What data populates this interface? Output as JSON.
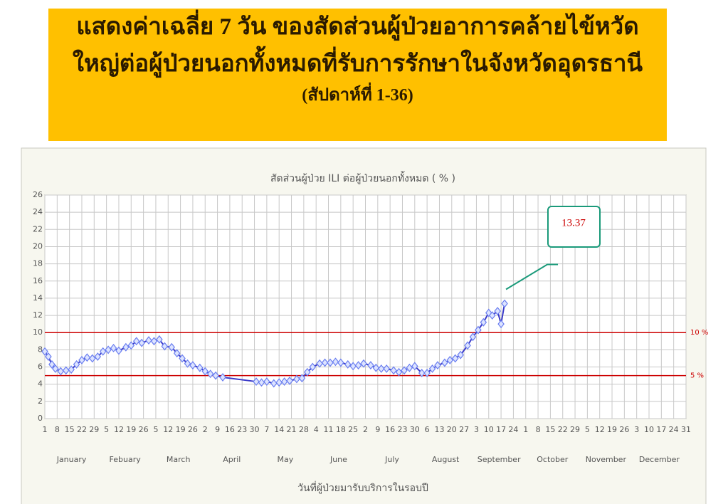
{
  "banner": {
    "lines": [
      "แสดงค่าเฉลี่ย 7 วัน ของสัดส่วนผู้ป่วยอาการคล้ายไข้หวัด",
      "ใหญ่ต่อผู้ป่วยนอกทั้งหมดที่รับการรักษาในจังหวัดอุดรธานี",
      "(สัปดาห์ที่ 1-36)"
    ]
  },
  "chart_data": {
    "type": "line",
    "title": "สัดส่วนผู้ป่วย ILI ต่อผู้ป่วยนอกทั้งหมด ( % )",
    "x_label": "วันที่ผู้ป่วยมารับบริการในรอบปี",
    "xlim": [
      0,
      364
    ],
    "ylim": [
      0,
      26
    ],
    "yticks": [
      0,
      2,
      4,
      6,
      8,
      10,
      12,
      14,
      16,
      18,
      20,
      22,
      24,
      26
    ],
    "grid": true,
    "xticks": [
      {
        "value": 0,
        "label": "1"
      },
      {
        "value": 7,
        "label": "8"
      },
      {
        "value": 14,
        "label": "15"
      },
      {
        "value": 21,
        "label": "22"
      },
      {
        "value": 28,
        "label": "29"
      },
      {
        "value": 35,
        "label": "5"
      },
      {
        "value": 42,
        "label": "12"
      },
      {
        "value": 49,
        "label": "19"
      },
      {
        "value": 56,
        "label": "26"
      },
      {
        "value": 63,
        "label": "5"
      },
      {
        "value": 70,
        "label": "12"
      },
      {
        "value": 77,
        "label": "19"
      },
      {
        "value": 84,
        "label": "26"
      },
      {
        "value": 91,
        "label": "2"
      },
      {
        "value": 98,
        "label": "9"
      },
      {
        "value": 105,
        "label": "16"
      },
      {
        "value": 112,
        "label": "23"
      },
      {
        "value": 119,
        "label": "30"
      },
      {
        "value": 126,
        "label": "7"
      },
      {
        "value": 133,
        "label": "14"
      },
      {
        "value": 140,
        "label": "21"
      },
      {
        "value": 147,
        "label": "28"
      },
      {
        "value": 154,
        "label": "4"
      },
      {
        "value": 161,
        "label": "11"
      },
      {
        "value": 168,
        "label": "18"
      },
      {
        "value": 175,
        "label": "25"
      },
      {
        "value": 182,
        "label": "2"
      },
      {
        "value": 189,
        "label": "9"
      },
      {
        "value": 196,
        "label": "16"
      },
      {
        "value": 203,
        "label": "23"
      },
      {
        "value": 210,
        "label": "30"
      },
      {
        "value": 217,
        "label": "6"
      },
      {
        "value": 224,
        "label": "13"
      },
      {
        "value": 231,
        "label": "20"
      },
      {
        "value": 238,
        "label": "27"
      },
      {
        "value": 245,
        "label": "3"
      },
      {
        "value": 252,
        "label": "10"
      },
      {
        "value": 259,
        "label": "17"
      },
      {
        "value": 266,
        "label": "24"
      },
      {
        "value": 273,
        "label": "1"
      },
      {
        "value": 280,
        "label": "8"
      },
      {
        "value": 287,
        "label": "15"
      },
      {
        "value": 294,
        "label": "22"
      },
      {
        "value": 301,
        "label": "29"
      },
      {
        "value": 308,
        "label": "5"
      },
      {
        "value": 315,
        "label": "12"
      },
      {
        "value": 322,
        "label": "19"
      },
      {
        "value": 329,
        "label": "26"
      },
      {
        "value": 336,
        "label": "3"
      },
      {
        "value": 343,
        "label": "10"
      },
      {
        "value": 350,
        "label": "17"
      },
      {
        "value": 357,
        "label": "24"
      },
      {
        "value": 364,
        "label": "31"
      }
    ],
    "months": [
      "January",
      "Febuary",
      "March",
      "April",
      "May",
      "June",
      "July",
      "August",
      "September",
      "October",
      "November",
      "December"
    ],
    "x": [
      0,
      2,
      4,
      6,
      9,
      12,
      15,
      18,
      21,
      24,
      27,
      30,
      33,
      36,
      39,
      42,
      46,
      49,
      52,
      55,
      59,
      62,
      65,
      68,
      72,
      75,
      78,
      81,
      84,
      88,
      91,
      94,
      97,
      101,
      120,
      123,
      126,
      130,
      133,
      136,
      139,
      143,
      146,
      149,
      152,
      156,
      159,
      162,
      165,
      168,
      172,
      175,
      178,
      181,
      185,
      188,
      191,
      194,
      198,
      201,
      204,
      207,
      210,
      214,
      217,
      220,
      223,
      227,
      230,
      233,
      236,
      240,
      243,
      246,
      249,
      252,
      254,
      257,
      259,
      261
    ],
    "series": [
      {
        "color": "#3a3ac8",
        "values": [
          7.8,
          7.2,
          6.3,
          5.8,
          5.5,
          5.6,
          5.7,
          6.3,
          6.8,
          7.1,
          7.0,
          7.2,
          7.8,
          8.0,
          8.2,
          7.9,
          8.3,
          8.5,
          9.0,
          8.8,
          9.1,
          9.0,
          9.2,
          8.4,
          8.3,
          7.6,
          7.0,
          6.4,
          6.2,
          5.9,
          5.5,
          5.2,
          5.0,
          4.8,
          4.3,
          4.2,
          4.3,
          4.1,
          4.2,
          4.3,
          4.4,
          4.6,
          4.7,
          5.4,
          6.0,
          6.4,
          6.5,
          6.5,
          6.6,
          6.5,
          6.3,
          6.1,
          6.2,
          6.4,
          6.2,
          5.9,
          5.8,
          5.8,
          5.6,
          5.4,
          5.6,
          5.9,
          6.1,
          5.3,
          5.3,
          5.8,
          6.2,
          6.5,
          6.8,
          7.0,
          7.4,
          8.5,
          9.5,
          10.3,
          11.2,
          12.3,
          12.0,
          12.5,
          11.0,
          13.37
        ]
      }
    ],
    "ref_lines": [
      {
        "value": 10,
        "label": "10 %",
        "color": "#cc0000"
      },
      {
        "value": 5,
        "label": "5 %",
        "color": "#cc0000"
      }
    ],
    "annotation": "13.37"
  }
}
